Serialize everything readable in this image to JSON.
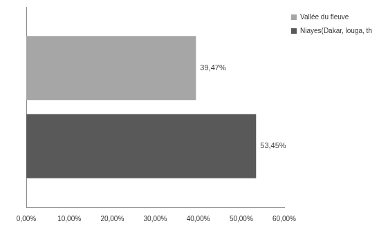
{
  "chart_data": {
    "type": "bar",
    "orientation": "horizontal",
    "categories": [
      null
    ],
    "series": [
      {
        "name": "Vallée du fleuve",
        "color": "#a6a6a6",
        "values": [
          39.47
        ],
        "value_labels": [
          "39,47%"
        ]
      },
      {
        "name": "Niayes(Dakar, louga, thies)",
        "color": "#595959",
        "values": [
          53.45
        ],
        "value_labels": [
          "53,45%"
        ]
      }
    ],
    "xlim": [
      0,
      60
    ],
    "xticks": [
      {
        "value": 0,
        "label": "0,00%"
      },
      {
        "value": 10,
        "label": "10,00%"
      },
      {
        "value": 20,
        "label": "20,00%"
      },
      {
        "value": 30,
        "label": "30,00%"
      },
      {
        "value": 40,
        "label": "40,00%"
      },
      {
        "value": 50,
        "label": "50,00%"
      },
      {
        "value": 60,
        "label": "60,00%"
      }
    ],
    "grid": false,
    "legend": "top-right",
    "data_labels": true,
    "tick_labels": "x"
  }
}
